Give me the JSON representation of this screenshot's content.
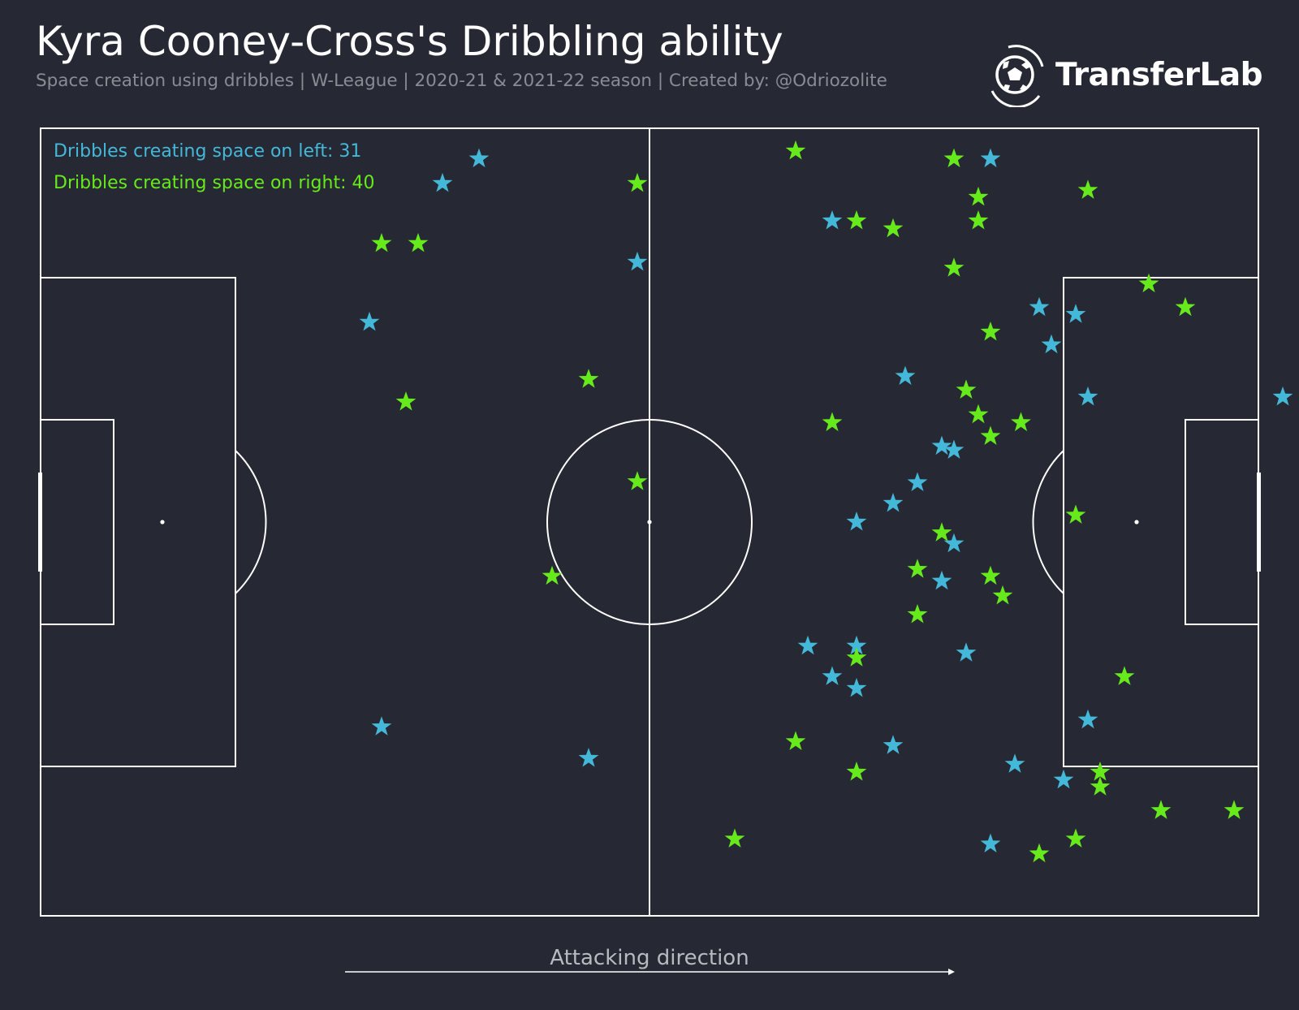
{
  "header": {
    "title": "Kyra Cooney-Cross's Dribbling ability",
    "subtitle": "Space creation using dribbles | W-League | 2020-21 & 2021-22 season | Created by: @Odriozolite",
    "brand": "TransferLab"
  },
  "colors": {
    "background": "#262833",
    "left": "#44b8d8",
    "right": "#66ea1c",
    "lines": "#ffffff",
    "subtitle": "#8a8c94"
  },
  "footer": {
    "direction_label": "Attacking direction"
  },
  "chart_data": {
    "type": "scatter",
    "pitch": {
      "length": 120,
      "width": 80
    },
    "legend": {
      "left_label": "Dribbles creating space on left: 31",
      "right_label": "Dribbles creating space on right: 40"
    },
    "series": [
      {
        "key": "left",
        "points": [
          [
            43.2,
            3.1
          ],
          [
            39.6,
            5.6
          ],
          [
            58.8,
            13.6
          ],
          [
            32.4,
            19.7
          ],
          [
            33.6,
            60.8
          ],
          [
            54.0,
            64.0
          ],
          [
            93.6,
            3.1
          ],
          [
            78.0,
            9.4
          ],
          [
            98.4,
            18.2
          ],
          [
            102.0,
            18.9
          ],
          [
            99.6,
            22.0
          ],
          [
            85.2,
            25.2
          ],
          [
            103.2,
            27.3
          ],
          [
            88.8,
            32.3
          ],
          [
            90.0,
            32.7
          ],
          [
            86.4,
            36.0
          ],
          [
            84.0,
            38.1
          ],
          [
            80.4,
            40.0
          ],
          [
            90.0,
            42.2
          ],
          [
            88.8,
            46.0
          ],
          [
            75.6,
            52.6
          ],
          [
            80.4,
            52.6
          ],
          [
            91.2,
            53.3
          ],
          [
            78.0,
            55.7
          ],
          [
            80.4,
            56.9
          ],
          [
            103.2,
            60.1
          ],
          [
            84.0,
            62.7
          ],
          [
            96.0,
            64.6
          ],
          [
            100.8,
            66.2
          ],
          [
            93.6,
            72.7
          ],
          [
            122.4,
            27.3
          ]
        ]
      },
      {
        "key": "right",
        "points": [
          [
            33.6,
            11.7
          ],
          [
            37.2,
            11.7
          ],
          [
            58.8,
            5.6
          ],
          [
            54.0,
            25.5
          ],
          [
            36.0,
            27.8
          ],
          [
            58.8,
            35.9
          ],
          [
            50.4,
            45.5
          ],
          [
            74.4,
            2.3
          ],
          [
            103.2,
            6.3
          ],
          [
            92.4,
            7.0
          ],
          [
            92.4,
            9.4
          ],
          [
            80.4,
            9.4
          ],
          [
            84.0,
            10.2
          ],
          [
            90.0,
            14.2
          ],
          [
            109.2,
            15.8
          ],
          [
            112.8,
            18.2
          ],
          [
            93.6,
            20.7
          ],
          [
            91.2,
            26.6
          ],
          [
            92.4,
            29.1
          ],
          [
            78.0,
            29.9
          ],
          [
            96.6,
            29.9
          ],
          [
            93.6,
            31.3
          ],
          [
            102.0,
            39.3
          ],
          [
            88.8,
            41.1
          ],
          [
            86.4,
            44.8
          ],
          [
            93.6,
            45.5
          ],
          [
            94.8,
            47.5
          ],
          [
            86.4,
            49.4
          ],
          [
            80.4,
            53.8
          ],
          [
            106.8,
            55.7
          ],
          [
            74.4,
            62.3
          ],
          [
            80.4,
            65.4
          ],
          [
            104.4,
            65.4
          ],
          [
            104.4,
            66.9
          ],
          [
            110.4,
            69.3
          ],
          [
            117.6,
            69.3
          ],
          [
            102.0,
            72.2
          ],
          [
            98.4,
            73.7
          ],
          [
            68.4,
            72.2
          ],
          [
            90.0,
            3.1
          ]
        ]
      }
    ]
  }
}
